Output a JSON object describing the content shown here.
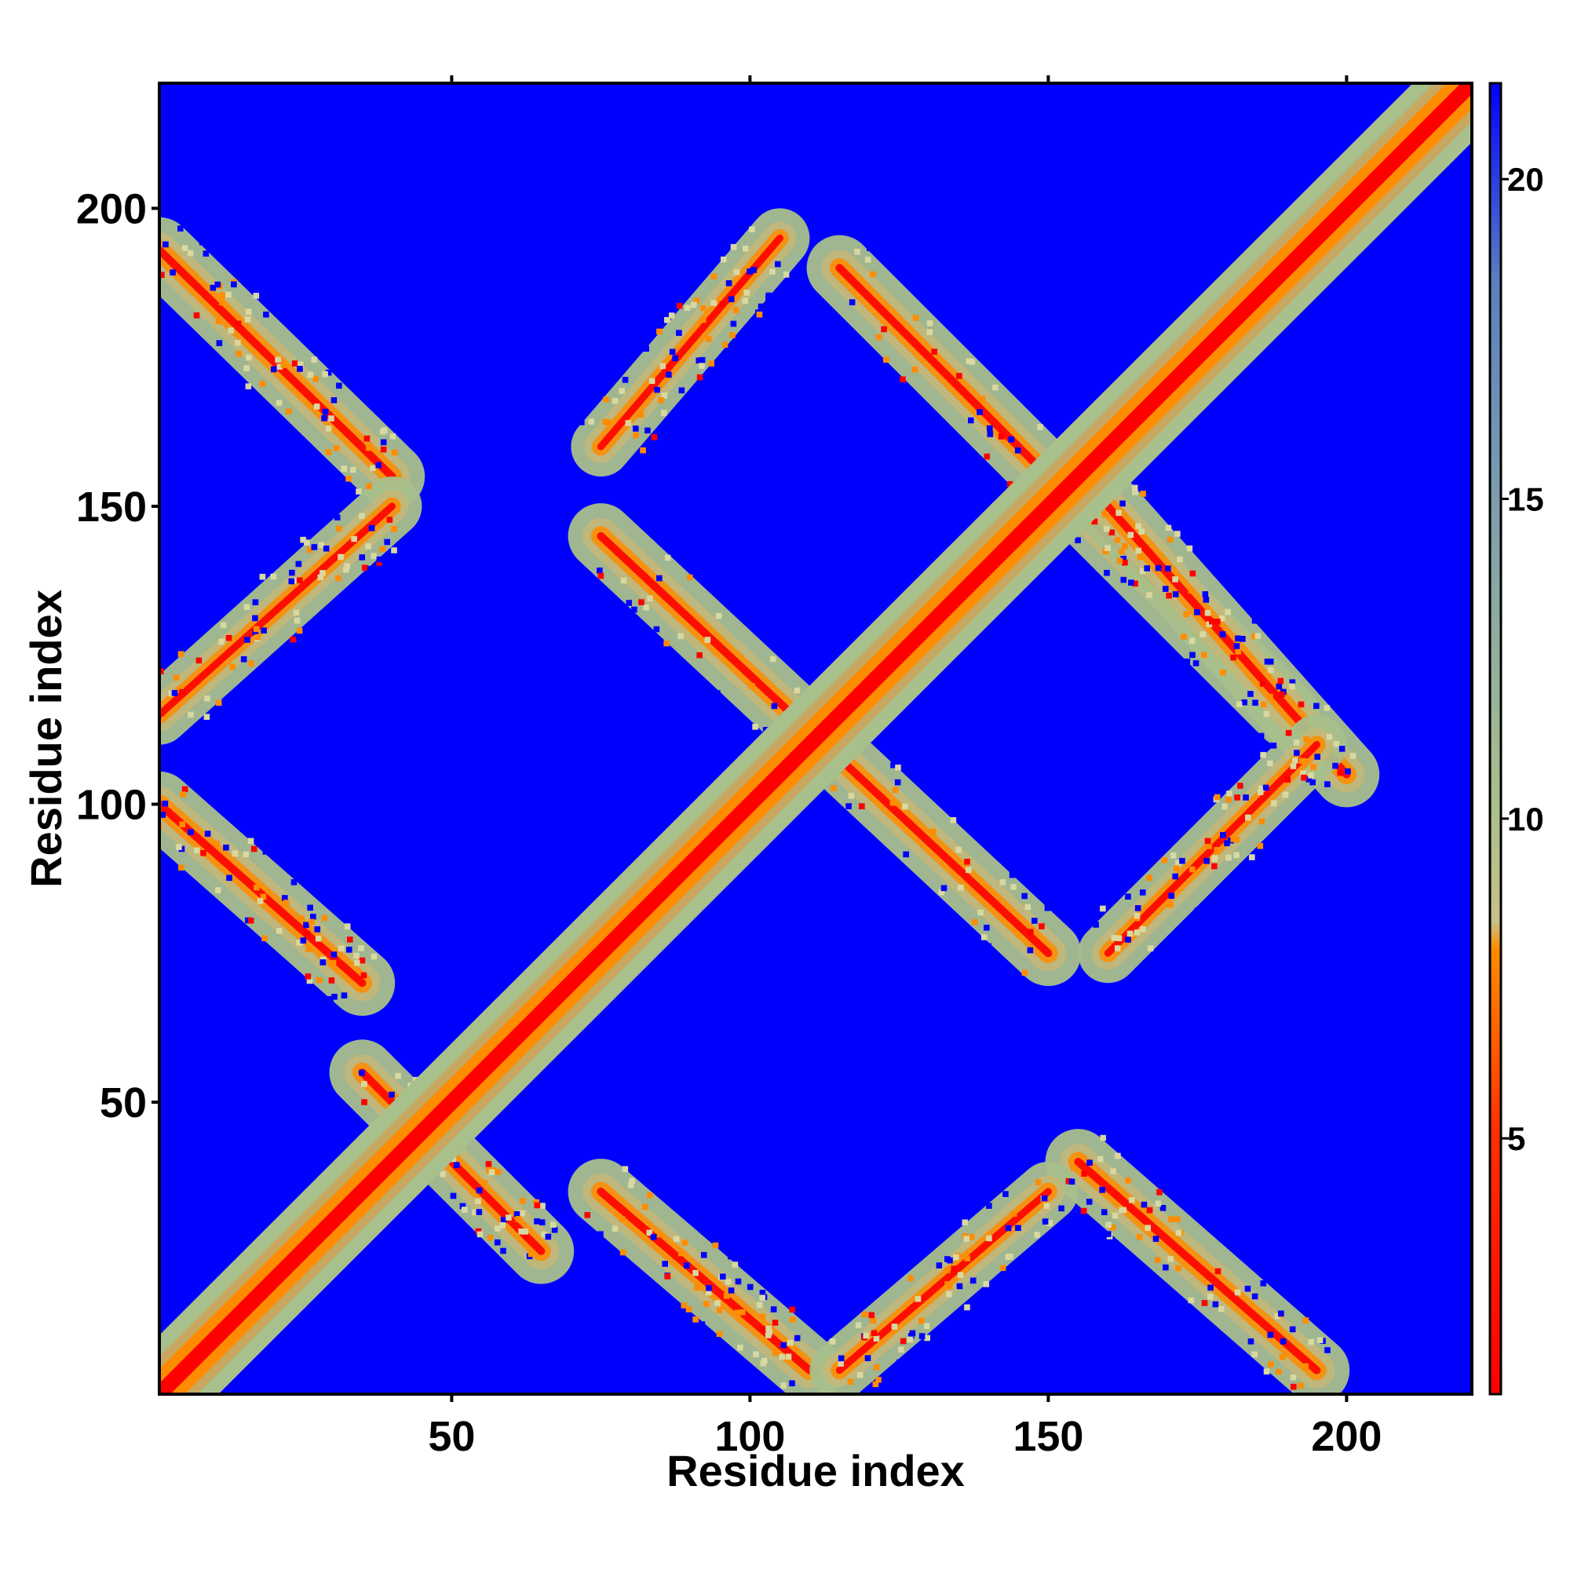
{
  "chart_data": {
    "type": "heatmap",
    "title": "",
    "xlabel": "Residue index",
    "ylabel": "Residue index",
    "x_range": [
      1,
      221
    ],
    "y_range": [
      1,
      221
    ],
    "x_ticks": [
      50,
      100,
      150,
      200
    ],
    "y_ticks": [
      50,
      100,
      150,
      200
    ],
    "colorbar": {
      "range": [
        1,
        21.5
      ],
      "ticks": [
        5,
        10,
        15,
        20
      ],
      "colors": {
        "low": "#ff0000",
        "mid_low": "#ff8c00",
        "mid": "#a8c08c",
        "high": "#5a7fc0",
        "background": "#0000ff"
      }
    },
    "description_features": {
      "diagonal": {
        "from": [
          1,
          1
        ],
        "to": [
          221,
          221
        ]
      },
      "antiparallel_bands": [
        {
          "from": [
            1,
            193
          ],
          "to": [
            40,
            155
          ]
        },
        {
          "from": [
            75,
            145
          ],
          "to": [
            150,
            75
          ]
        },
        {
          "from": [
            115,
            190
          ],
          "to": [
            190,
            115
          ]
        },
        {
          "from": [
            160,
            150
          ],
          "to": [
            200,
            105
          ]
        },
        {
          "from": [
            1,
            100
          ],
          "to": [
            35,
            70
          ]
        },
        {
          "from": [
            75,
            35
          ],
          "to": [
            110,
            5
          ]
        },
        {
          "from": [
            155,
            40
          ],
          "to": [
            195,
            5
          ]
        },
        {
          "from": [
            35,
            55
          ],
          "to": [
            65,
            25
          ]
        }
      ],
      "parallel_bands": [
        {
          "from": [
            1,
            115
          ],
          "to": [
            40,
            150
          ]
        },
        {
          "from": [
            75,
            160
          ],
          "to": [
            105,
            195
          ]
        },
        {
          "from": [
            115,
            5
          ],
          "to": [
            150,
            35
          ]
        },
        {
          "from": [
            160,
            75
          ],
          "to": [
            195,
            110
          ]
        }
      ]
    }
  }
}
